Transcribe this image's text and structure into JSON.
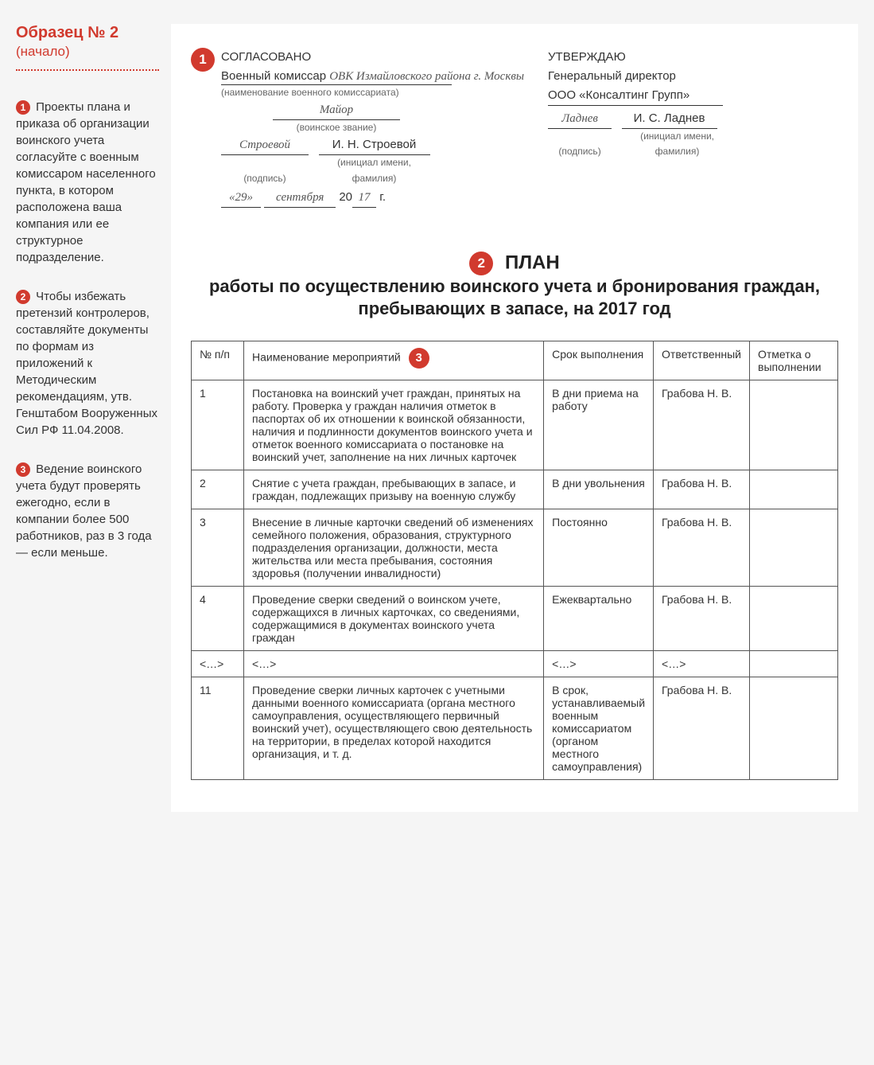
{
  "sidebar": {
    "title": "Образец № 2",
    "subtitle": "(начало)",
    "notes": [
      {
        "n": "1",
        "text": "Проекты плана и приказа об организации воинского учета согласуйте с военным комиссаром населенного пункта, в котором расположена ваша компания или ее структурное подразделение."
      },
      {
        "n": "2",
        "text": "Чтобы избежать претензий контролеров, составляйте документы по формам из приложений к Методическим рекомендациям, утв. Генштабом Вооруженных Сил РФ 11.04.2008."
      },
      {
        "n": "3",
        "text": "Ведение воинского учета будут проверять ежегодно, если в компании более 500 работников, раз в 3 года — если меньше."
      }
    ]
  },
  "approvals": {
    "left": {
      "badge": "1",
      "header": "СОГЛАСОВАНО",
      "line1_prefix": "Военный комиссар ",
      "commissar": "ОВК Измайловского района г. Москвы",
      "cap1": "(наименование военного комиссариата)",
      "rank": "Майор",
      "cap2": "(воинское звание)",
      "sign": "Строевой",
      "name": "И. Н. Строевой",
      "cap3_a": "(подпись)",
      "cap3_b": "(инициал имени, фамилия)",
      "date_d": "«29»",
      "date_m": "сентября",
      "date_ypref": "20",
      "date_y": "17",
      "date_suf": "г."
    },
    "right": {
      "header": "УТВЕРЖДАЮ",
      "line1": "Генеральный директор",
      "company": "ООО «Консалтинг Групп»",
      "sign": "Ладнев",
      "name": "И. С. Ладнев",
      "cap_a": "(подпись)",
      "cap_b": "(инициал имени, фамилия)"
    }
  },
  "title": {
    "badge": "2",
    "word": "ПЛАН",
    "rest": "работы по осуществлению воинского учета и бронирования граждан, пребывающих в запасе, на 2017 год"
  },
  "table": {
    "headers": {
      "num": "№ п/п",
      "name": "Наименование мероприятий",
      "name_badge": "3",
      "srok": "Срок выполнения",
      "otv": "Ответственный",
      "otm": "Отметка о выполнении"
    },
    "rows": [
      {
        "n": "1",
        "name": "Постановка на воинский учет граждан, принятых на работу. Проверка у граждан наличия отметок в паспортах об их отношении к воинской обязанности, наличия и подлинности документов воинского учета и отметок военного комиссариата о постановке на воинский учет, заполнение на них личных карточек",
        "srok": "В дни приема на работу",
        "otv": "Грабова Н. В.",
        "otm": ""
      },
      {
        "n": "2",
        "name": "Снятие с учета граждан, пребывающих в запасе, и граждан, подлежащих призыву на военную службу",
        "srok": "В дни увольнения",
        "otv": "Грабова Н. В.",
        "otm": ""
      },
      {
        "n": "3",
        "name": "Внесение в личные карточки сведений об изменениях семейного положения, образования, структурного подразделения организации, должности, места жительства или места пребывания, состояния здоровья (получении инвалидности)",
        "srok": "Постоянно",
        "otv": "Грабова Н. В.",
        "otm": ""
      },
      {
        "n": "4",
        "name": "Проведение сверки сведений о воинском учете, содержащихся в личных карточках, со сведениями, содержащимися в документах воинского учета граждан",
        "srok": "Ежеквартально",
        "otv": "Грабова Н. В.",
        "otm": ""
      },
      {
        "n": "<…>",
        "name": "<…>",
        "srok": "<…>",
        "otv": "<…>",
        "otm": ""
      },
      {
        "n": "11",
        "name": "Проведение сверки личных карточек с учетными данными военного комиссариата (органа местного самоуправления, осуществляющего первичный воинский учет), осуществляющего свою деятельность на территории, в пределах которой находится организация, и т. д.",
        "srok": "В срок, устанавливаемый военным комиссариатом (органом местного самоуправления)",
        "otv": "Грабова Н. В.",
        "otm": ""
      }
    ]
  }
}
